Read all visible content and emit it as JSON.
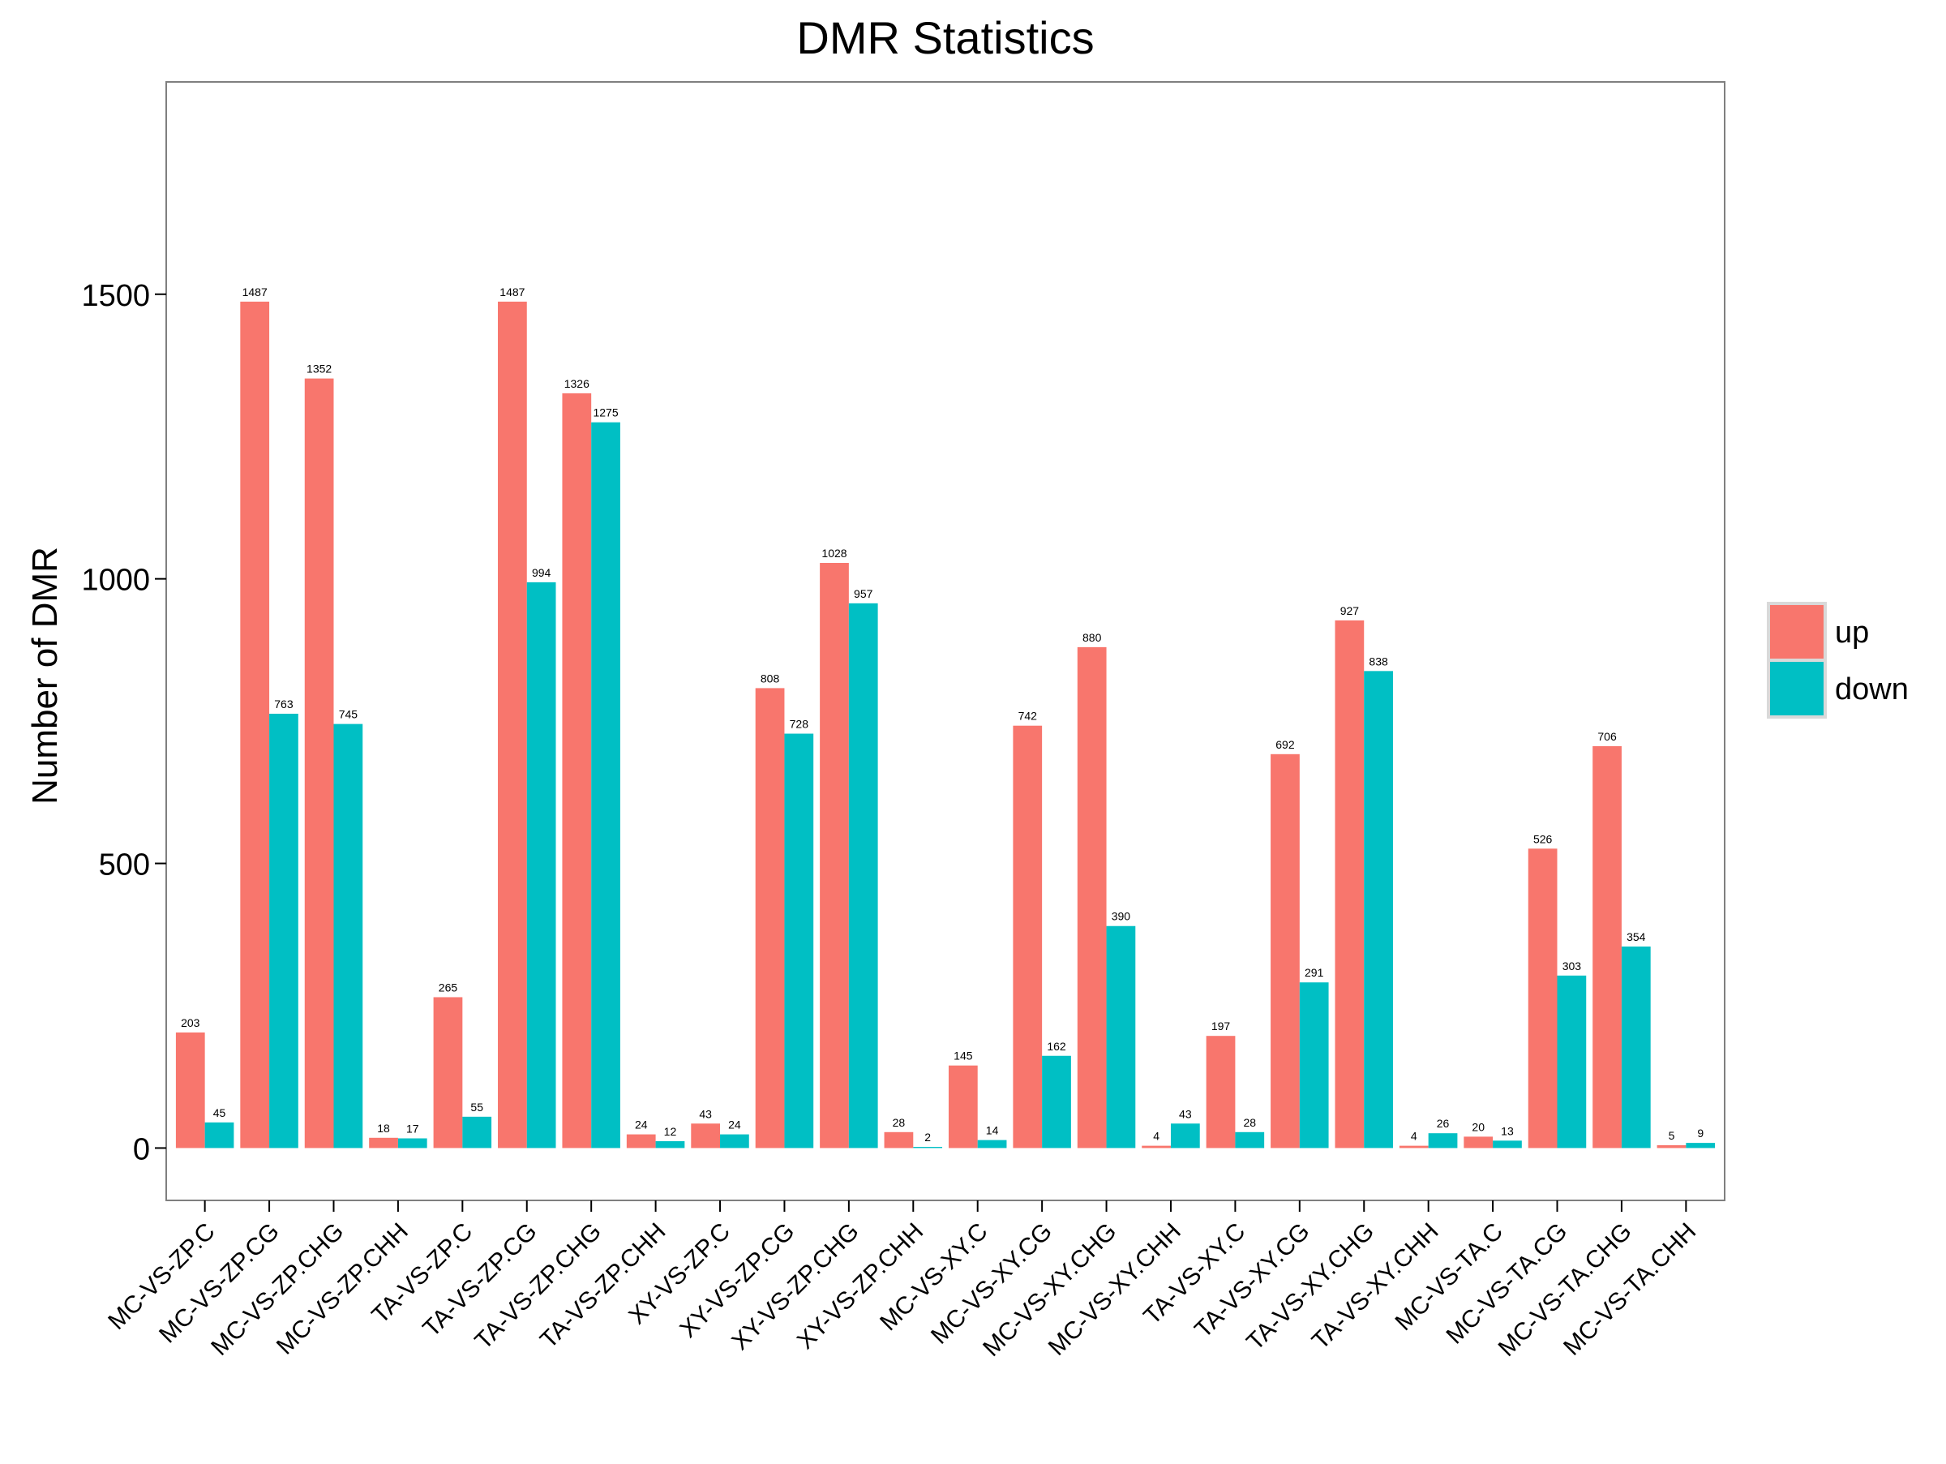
{
  "chart_data": {
    "type": "bar",
    "title": "DMR Statistics",
    "xlabel": "",
    "ylabel": "Number of DMR",
    "ylim": [
      -92,
      1873
    ],
    "yticks": [
      0,
      500,
      1000,
      1500
    ],
    "grid": false,
    "legend_position": "right",
    "categories": [
      "MC-VS-ZP.C",
      "MC-VS-ZP.CG",
      "MC-VS-ZP.CHG",
      "MC-VS-ZP.CHH",
      "TA-VS-ZP.C",
      "TA-VS-ZP.CG",
      "TA-VS-ZP.CHG",
      "TA-VS-ZP.CHH",
      "XY-VS-ZP.C",
      "XY-VS-ZP.CG",
      "XY-VS-ZP.CHG",
      "XY-VS-ZP.CHH",
      "MC-VS-XY.C",
      "MC-VS-XY.CG",
      "MC-VS-XY.CHG",
      "MC-VS-XY.CHH",
      "TA-VS-XY.C",
      "TA-VS-XY.CG",
      "TA-VS-XY.CHG",
      "TA-VS-XY.CHH",
      "MC-VS-TA.C",
      "MC-VS-TA.CG",
      "MC-VS-TA.CHG",
      "MC-VS-TA.CHH"
    ],
    "series": [
      {
        "name": "up",
        "color": "#F8766D",
        "values": [
          203,
          1487,
          1352,
          18,
          265,
          1487,
          1326,
          24,
          43,
          808,
          1028,
          28,
          145,
          742,
          880,
          4,
          197,
          692,
          927,
          4,
          20,
          526,
          706,
          5
        ]
      },
      {
        "name": "down",
        "color": "#00BFC4",
        "values": [
          45,
          763,
          745,
          17,
          55,
          994,
          1275,
          12,
          24,
          728,
          957,
          2,
          14,
          162,
          390,
          43,
          28,
          291,
          838,
          26,
          13,
          303,
          354,
          9
        ]
      }
    ]
  }
}
